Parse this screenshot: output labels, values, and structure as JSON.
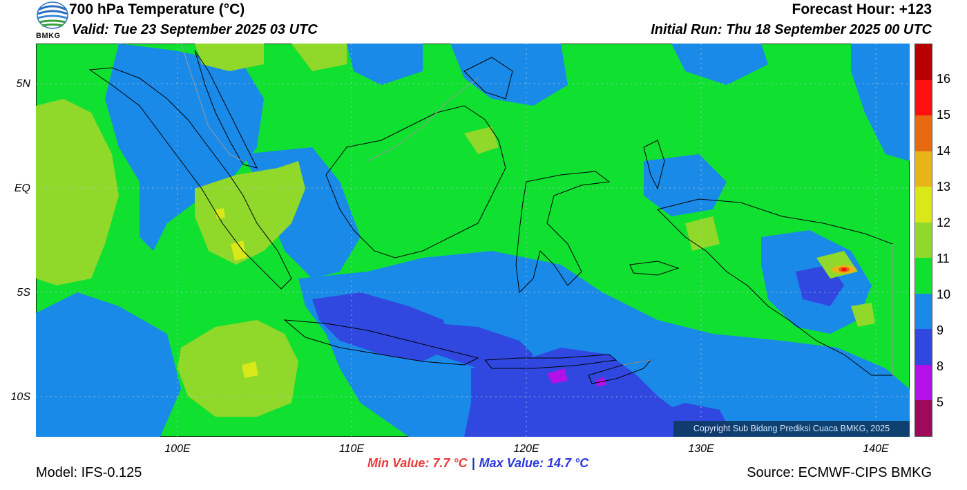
{
  "header": {
    "title": "700 hPa Temperature (°C)",
    "valid": "Valid: Tue 23 September 2025 03 UTC",
    "forecast_hour": "Forecast Hour: +123",
    "initial_run": "Initial Run: Thu 18 September 2025 00 UTC",
    "logo_text": "BMKG"
  },
  "map": {
    "lat_labels": [
      "5N",
      "EQ",
      "5S",
      "10S"
    ],
    "lon_labels": [
      "100E",
      "110E",
      "120E",
      "130E",
      "140E"
    ],
    "copyright": "Copyright Sub Bidang Prediksi Cuaca BMKG, 2025"
  },
  "colorbar": {
    "labels": [
      "16",
      "15",
      "14",
      "13",
      "12",
      "11",
      "10",
      "9",
      "8",
      "5"
    ],
    "colors": [
      "#b80000",
      "#ff1010",
      "#e86a10",
      "#e8b418",
      "#d8e818",
      "#90d82a",
      "#10e030",
      "#1a8ae8",
      "#3048e0",
      "#b410e8",
      "#a0085a"
    ]
  },
  "footer": {
    "model": "Model: IFS-0.125",
    "min_value": "Min Value: 7.7 °C",
    "separator": "|",
    "max_value": "Max Value: 14.7 °C",
    "source": "Source: ECMWF-CIPS BMKG"
  }
}
